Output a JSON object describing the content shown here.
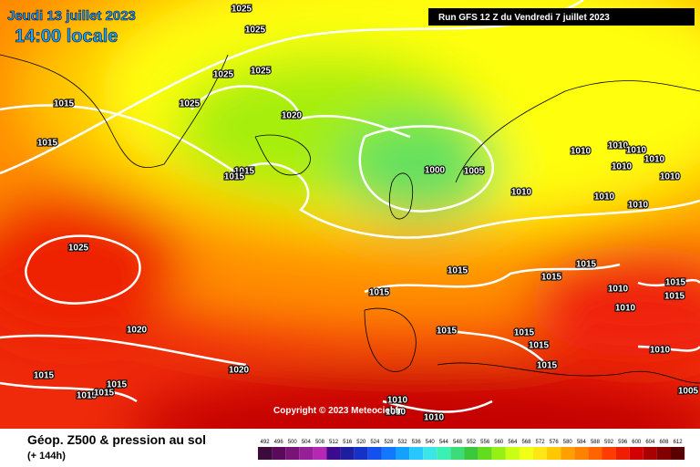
{
  "header": {
    "date": "Jeudi 13 juillet 2023",
    "time": "14:00 locale",
    "run": "Run GFS 12 Z du Vendredi 7 juillet 2023"
  },
  "copyright": "Copyright © 2023 Meteociel.fr",
  "footer": {
    "title": "Géop. Z500 & pression au sol",
    "lead": "(+ 144h)"
  },
  "scale": [
    492,
    496,
    500,
    504,
    508,
    512,
    516,
    520,
    524,
    528,
    532,
    536,
    540,
    544,
    548,
    552,
    556,
    560,
    564,
    568,
    572,
    576,
    580,
    584,
    588,
    592,
    596,
    600,
    604,
    608,
    612
  ],
  "isobar_labels": [
    "1025",
    "1025",
    "1025",
    "1025",
    "1025",
    "1015",
    "1015",
    "1020",
    "1015",
    "1015",
    "1000",
    "1005",
    "1010",
    "1010",
    "1010",
    "1010",
    "1010",
    "1010",
    "1010",
    "1010",
    "1010",
    "1025",
    "1015",
    "1015",
    "1015",
    "1015",
    "1010",
    "1010",
    "1015",
    "1015",
    "1020",
    "1015",
    "1015",
    "1015",
    "1015",
    "1010",
    "1015",
    "1015",
    "1015",
    "1015",
    "1020",
    "1010",
    "1010",
    "1010",
    "1005"
  ]
}
